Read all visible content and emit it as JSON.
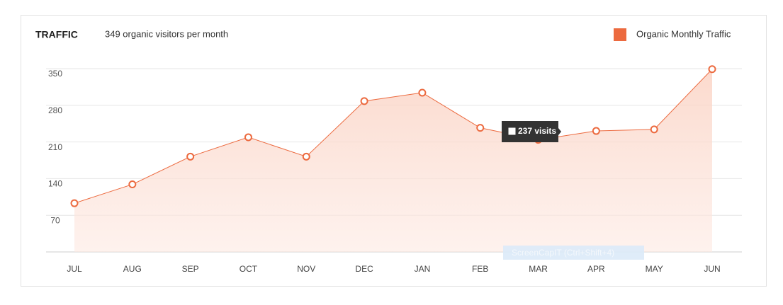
{
  "chart_data": {
    "type": "area",
    "title": "TRAFFIC",
    "subtitle": "349 organic visitors per month",
    "categories": [
      "JUL",
      "AUG",
      "SEP",
      "OCT",
      "NOV",
      "DEC",
      "JAN",
      "FEB",
      "MAR",
      "APR",
      "MAY",
      "JUN"
    ],
    "series": [
      {
        "name": "Organic Monthly Traffic",
        "color": "#ec6a3f",
        "values": [
          93,
          129,
          182,
          219,
          182,
          288,
          304,
          237,
          214,
          231,
          234,
          349
        ]
      }
    ],
    "ylim": [
      0,
      350
    ],
    "yticks": [
      70,
      140,
      210,
      280,
      350
    ],
    "grid": true,
    "legend": "top-right",
    "tooltip": "237 visits",
    "watermark": "ScreenCapIT (Ctrl+Shift+4)"
  }
}
